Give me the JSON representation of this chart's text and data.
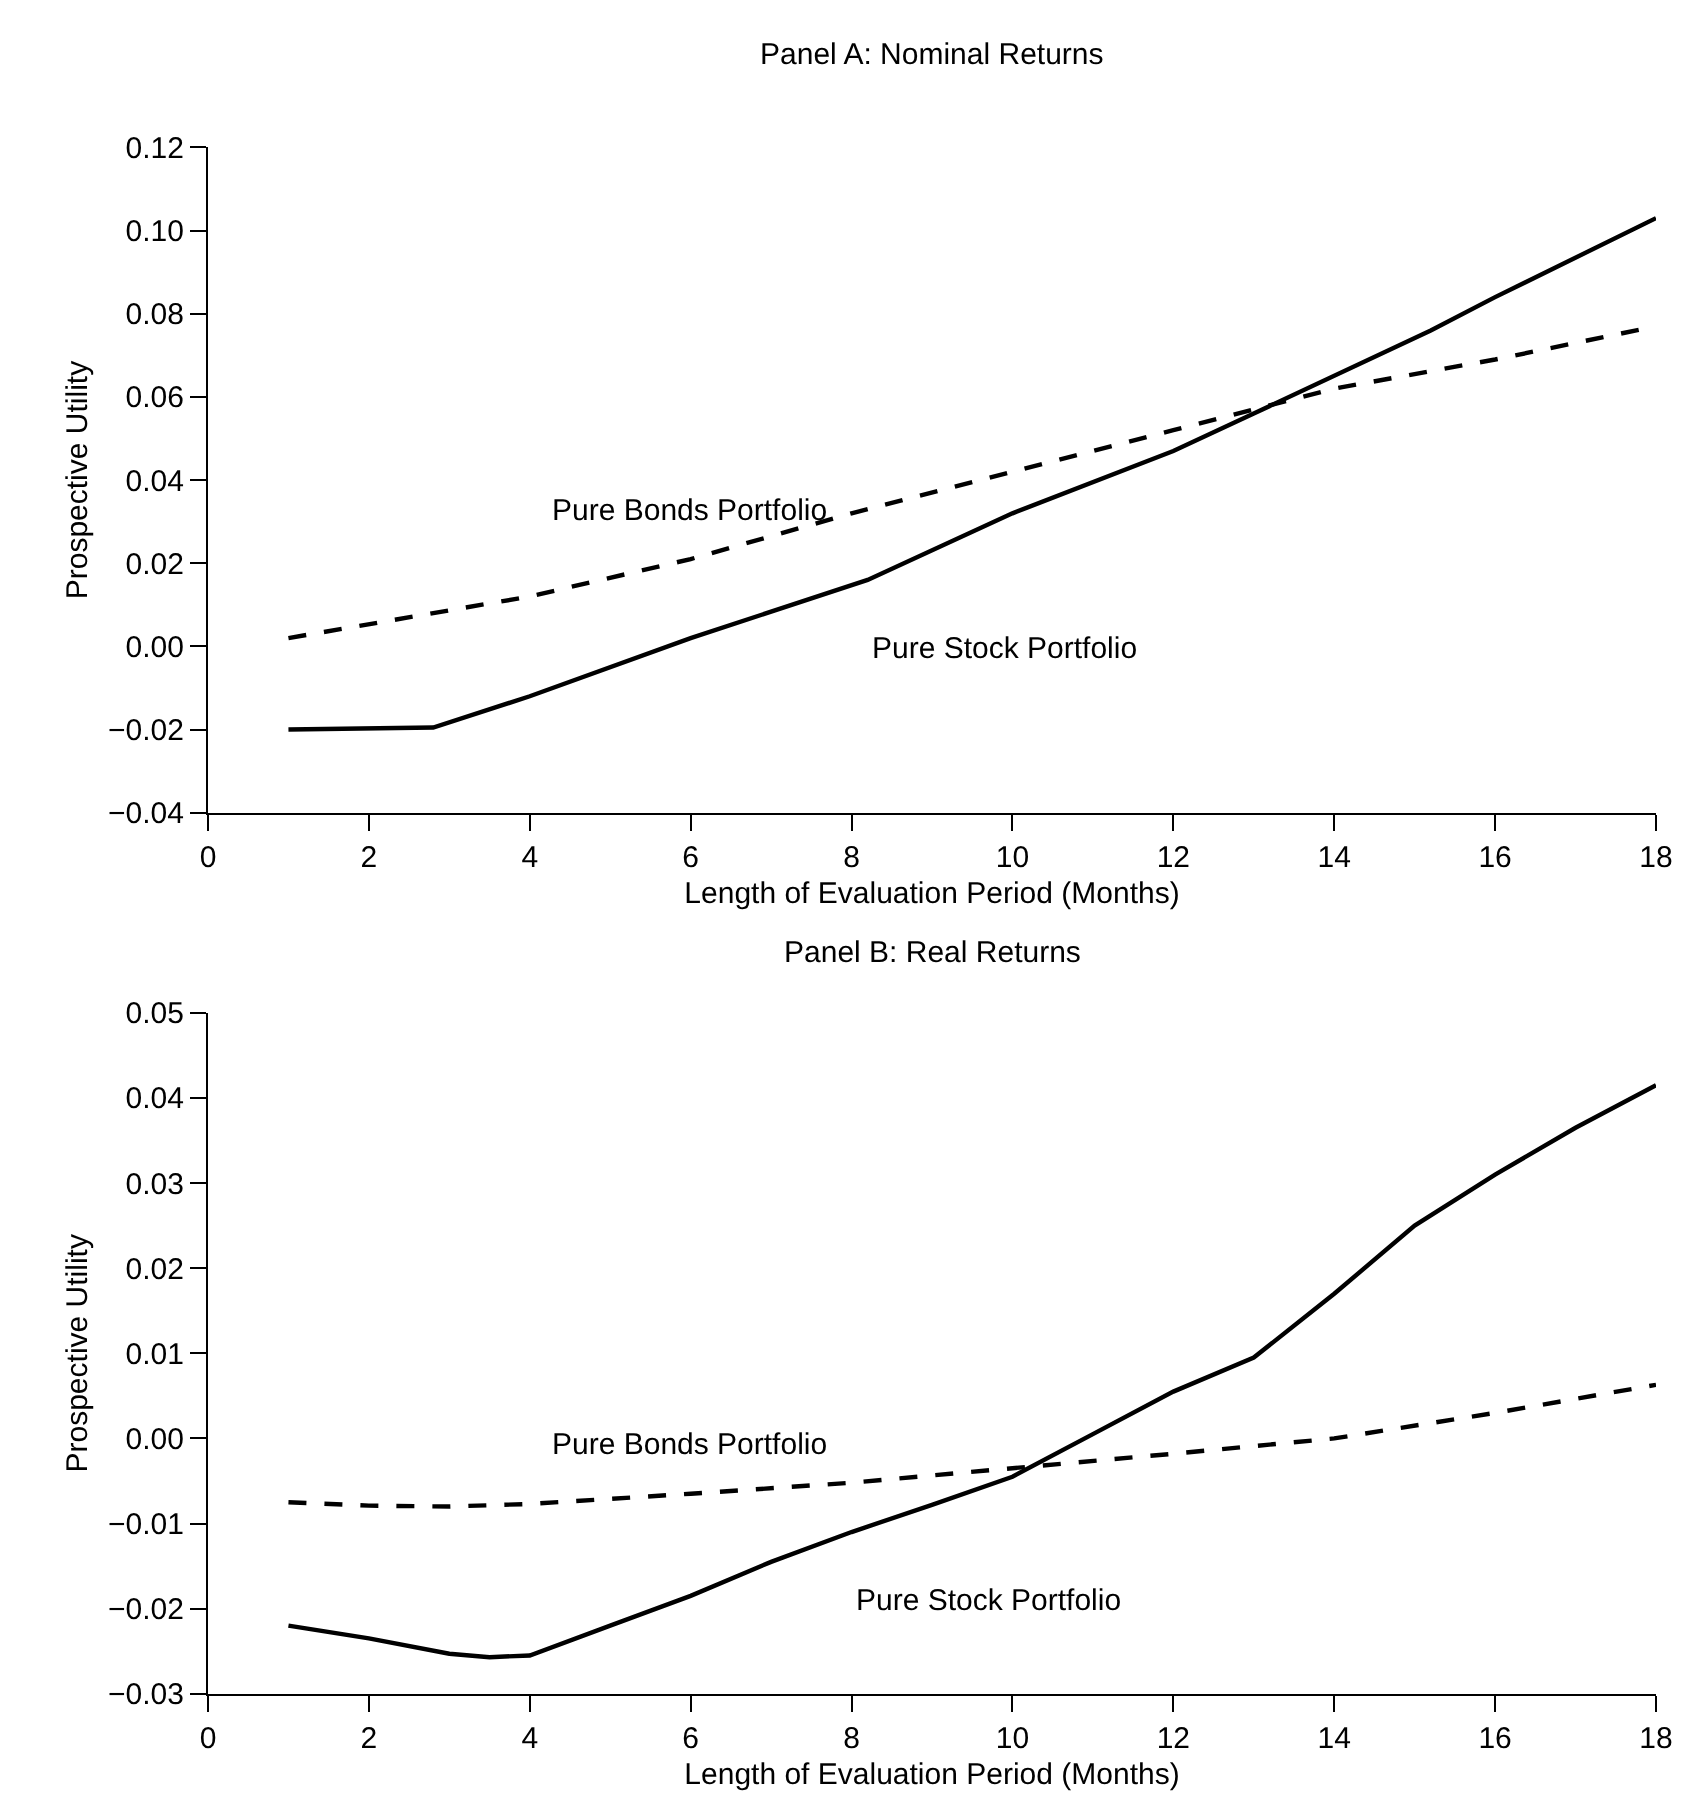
{
  "chart_data": [
    {
      "type": "line",
      "title": "Panel A: Nominal Returns",
      "xlabel": "Length of Evaluation Period (Months)",
      "ylabel": "Prospective Utility",
      "xlim": [
        0,
        18
      ],
      "xticks": [
        0,
        2,
        4,
        6,
        8,
        10,
        12,
        14,
        16,
        18
      ],
      "ylim": [
        -0.04,
        0.12
      ],
      "yticks": [
        {
          "value": -0.04,
          "label": "−0.04"
        },
        {
          "value": -0.02,
          "label": "−0.02"
        },
        {
          "value": 0,
          "label": "0.00"
        },
        {
          "value": 0.02,
          "label": "0.02"
        },
        {
          "value": 0.04,
          "label": "0.04"
        },
        {
          "value": 0.06,
          "label": "0.06"
        },
        {
          "value": 0.08,
          "label": "0.08"
        },
        {
          "value": 0.1,
          "label": "0.10"
        },
        {
          "value": 0.12,
          "label": "0.12"
        }
      ],
      "grid": false,
      "legend": false,
      "marker": "none",
      "series": [
        {
          "name": "Pure Stock Portfolio",
          "color": "#000000",
          "line_style": "solid",
          "x": [
            1,
            2.8,
            4,
            6,
            8.2,
            10,
            12,
            13,
            15.2,
            16,
            18
          ],
          "values": [
            -0.02,
            -0.0195,
            -0.012,
            0.002,
            0.016,
            0.032,
            0.047,
            0.056,
            0.076,
            0.084,
            0.103
          ]
        },
        {
          "name": "Pure Bonds Portfolio",
          "color": "#000000",
          "line_style": "dashed",
          "x": [
            1,
            4,
            6,
            8,
            10,
            12,
            14,
            16,
            18
          ],
          "values": [
            0.002,
            0.012,
            0.021,
            0.032,
            0.042,
            0.052,
            0.062,
            0.069,
            0.077
          ]
        }
      ]
    },
    {
      "type": "line",
      "title": "Panel B: Real Returns",
      "xlabel": "Length of Evaluation Period (Months)",
      "ylabel": "Prospective Utility",
      "xlim": [
        0,
        18
      ],
      "xticks": [
        0,
        2,
        4,
        6,
        8,
        10,
        12,
        14,
        16,
        18
      ],
      "ylim": [
        -0.03,
        0.05
      ],
      "yticks": [
        {
          "value": -0.03,
          "label": "−0.03"
        },
        {
          "value": -0.02,
          "label": "−0.02"
        },
        {
          "value": -0.01,
          "label": "−0.01"
        },
        {
          "value": 0,
          "label": "0.00"
        },
        {
          "value": 0.01,
          "label": "0.01"
        },
        {
          "value": 0.02,
          "label": "0.02"
        },
        {
          "value": 0.03,
          "label": "0.03"
        },
        {
          "value": 0.04,
          "label": "0.04"
        },
        {
          "value": 0.05,
          "label": "0.05"
        }
      ],
      "grid": false,
      "legend": false,
      "marker": "none",
      "series": [
        {
          "name": "Pure Stock Portfolio",
          "color": "#000000",
          "line_style": "solid",
          "x": [
            1,
            2,
            3,
            3.5,
            4,
            5,
            6,
            7,
            8,
            9,
            10,
            11,
            12,
            13,
            14,
            15,
            16,
            17,
            18
          ],
          "values": [
            -0.022,
            -0.0235,
            -0.0253,
            -0.0257,
            -0.0255,
            -0.022,
            -0.0185,
            -0.0145,
            -0.011,
            -0.0078,
            -0.0045,
            0.0005,
            0.0055,
            0.0095,
            0.017,
            0.025,
            0.031,
            0.0365,
            0.0415
          ]
        },
        {
          "name": "Pure Bonds Portfolio",
          "color": "#000000",
          "line_style": "dashed",
          "x": [
            1,
            2,
            3,
            4,
            6,
            8,
            10,
            12,
            14,
            16,
            18
          ],
          "values": [
            -0.0075,
            -0.0079,
            -0.008,
            -0.0077,
            -0.0065,
            -0.0052,
            -0.0035,
            -0.0018,
            0,
            0.003,
            0.0063
          ]
        }
      ]
    }
  ]
}
